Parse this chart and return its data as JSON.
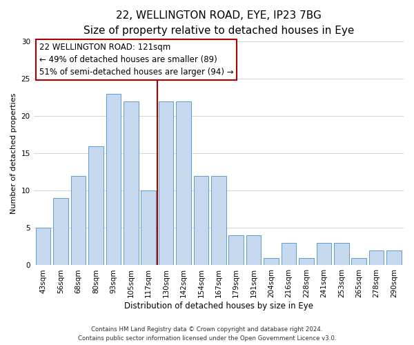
{
  "title": "22, WELLINGTON ROAD, EYE, IP23 7BG",
  "subtitle": "Size of property relative to detached houses in Eye",
  "xlabel": "Distribution of detached houses by size in Eye",
  "ylabel": "Number of detached properties",
  "categories": [
    "43sqm",
    "56sqm",
    "68sqm",
    "80sqm",
    "93sqm",
    "105sqm",
    "117sqm",
    "130sqm",
    "142sqm",
    "154sqm",
    "167sqm",
    "179sqm",
    "191sqm",
    "204sqm",
    "216sqm",
    "228sqm",
    "241sqm",
    "253sqm",
    "265sqm",
    "278sqm",
    "290sqm"
  ],
  "values": [
    5,
    9,
    12,
    16,
    23,
    22,
    10,
    22,
    22,
    12,
    12,
    4,
    4,
    1,
    3,
    1,
    3,
    3,
    1,
    2,
    2
  ],
  "bar_color": "#c5d8ed",
  "bar_edge_color": "#5b9bd5",
  "vline_x": 6.5,
  "vline_color": "#aa0000",
  "ylim": [
    0,
    30
  ],
  "yticks": [
    0,
    5,
    10,
    15,
    20,
    25,
    30
  ],
  "annotation_title": "22 WELLINGTON ROAD: 121sqm",
  "annotation_line1": "← 49% of detached houses are smaller (89)",
  "annotation_line2": "51% of semi-detached houses are larger (94) →",
  "annotation_box_edgecolor": "#aa0000",
  "footer_line1": "Contains HM Land Registry data © Crown copyright and database right 2024.",
  "footer_line2": "Contains public sector information licensed under the Open Government Licence v3.0.",
  "background_color": "#ffffff",
  "grid_color": "#cccccc",
  "title_fontsize": 11,
  "subtitle_fontsize": 9,
  "annotation_fontsize": 8.5,
  "ylabel_fontsize": 8,
  "xlabel_fontsize": 8.5,
  "tick_fontsize": 7.5,
  "footer_fontsize": 6.2
}
